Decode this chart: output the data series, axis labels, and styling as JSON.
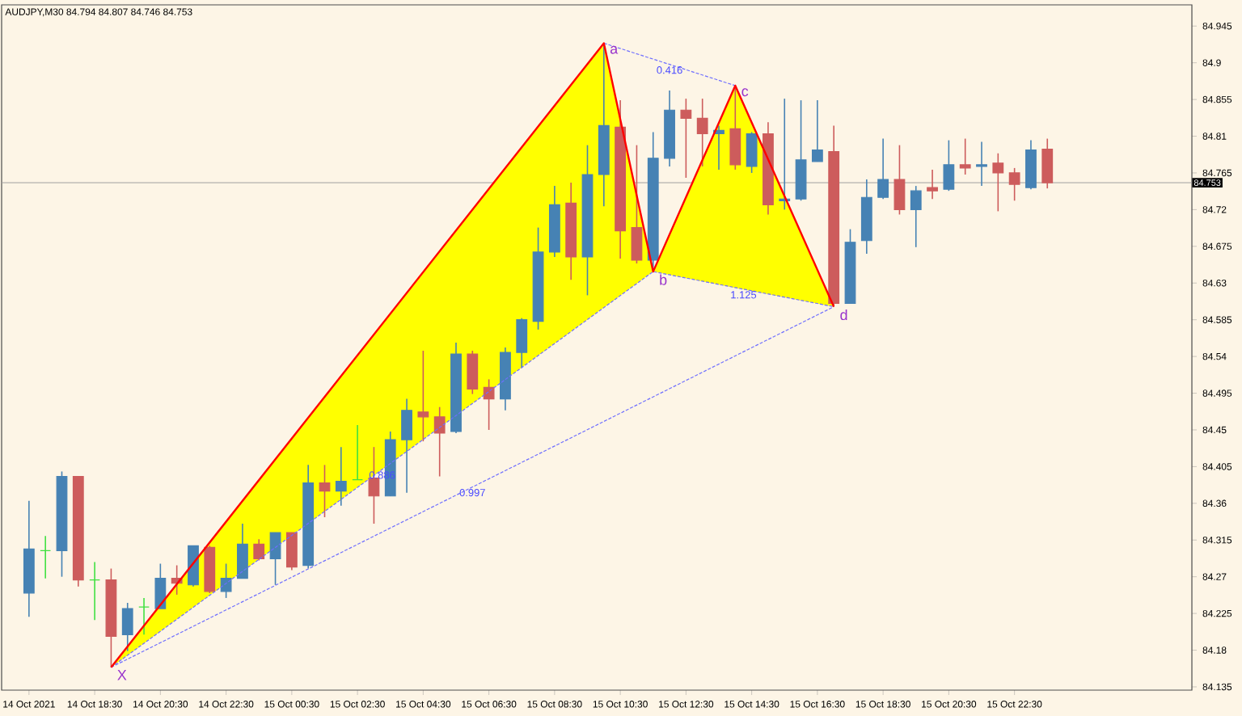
{
  "chart_data": {
    "type": "candlestick",
    "title": "AUDJPY,M30  84.794 84.807 84.746 84.753",
    "x": [
      "2021-10-14T16:30",
      "2021-10-14T17:00",
      "2021-10-14T17:30",
      "2021-10-14T18:00",
      "2021-10-14T18:30",
      "2021-10-14T19:00",
      "2021-10-14T19:30",
      "2021-10-14T20:00",
      "2021-10-14T20:30",
      "2021-10-14T21:00",
      "2021-10-14T21:30",
      "2021-10-14T22:00",
      "2021-10-14T22:30",
      "2021-10-14T23:00",
      "2021-10-14T23:30",
      "2021-10-15T00:00",
      "2021-10-15T00:30",
      "2021-10-15T01:00",
      "2021-10-15T01:30",
      "2021-10-15T02:00",
      "2021-10-15T02:30",
      "2021-10-15T03:00",
      "2021-10-15T03:30",
      "2021-10-15T04:00",
      "2021-10-15T04:30",
      "2021-10-15T05:00",
      "2021-10-15T05:30",
      "2021-10-15T06:00",
      "2021-10-15T06:30",
      "2021-10-15T07:00",
      "2021-10-15T07:30",
      "2021-10-15T08:00",
      "2021-10-15T08:30",
      "2021-10-15T09:00",
      "2021-10-15T09:30",
      "2021-10-15T10:00",
      "2021-10-15T10:30",
      "2021-10-15T11:00",
      "2021-10-15T11:30",
      "2021-10-15T12:00",
      "2021-10-15T12:30",
      "2021-10-15T13:00",
      "2021-10-15T13:30",
      "2021-10-15T14:00",
      "2021-10-15T14:30",
      "2021-10-15T15:00",
      "2021-10-15T15:30",
      "2021-10-15T16:00",
      "2021-10-15T16:30",
      "2021-10-15T17:00",
      "2021-10-15T17:30",
      "2021-10-15T18:00",
      "2021-10-15T18:30",
      "2021-10-15T19:00",
      "2021-10-15T19:30",
      "2021-10-15T20:00",
      "2021-10-15T20:30",
      "2021-10-15T21:00",
      "2021-10-15T21:30",
      "2021-10-15T22:00",
      "2021-10-15T22:30",
      "2021-10-15T23:00",
      "2021-10-15T23:30"
    ],
    "ohlc": [
      [
        84.25,
        84.363,
        84.221,
        84.304
      ],
      [
        84.302,
        84.32,
        84.268,
        84.302
      ],
      [
        84.302,
        84.399,
        84.27,
        84.393
      ],
      [
        84.393,
        84.393,
        84.258,
        84.266
      ],
      [
        84.266,
        84.288,
        84.217,
        84.266
      ],
      [
        84.266,
        84.28,
        84.159,
        84.197
      ],
      [
        84.199,
        84.238,
        84.179,
        84.231
      ],
      [
        84.233,
        84.244,
        84.199,
        84.233
      ],
      [
        84.231,
        84.286,
        84.231,
        84.268
      ],
      [
        84.268,
        84.284,
        84.248,
        84.262
      ],
      [
        84.26,
        84.308,
        84.258,
        84.308
      ],
      [
        84.306,
        84.308,
        84.25,
        84.252
      ],
      [
        84.252,
        84.286,
        84.244,
        84.268
      ],
      [
        84.268,
        84.335,
        84.268,
        84.31
      ],
      [
        84.31,
        84.316,
        84.29,
        84.292
      ],
      [
        84.292,
        84.324,
        84.26,
        84.324
      ],
      [
        84.324,
        84.324,
        84.278,
        84.282
      ],
      [
        84.284,
        84.407,
        84.28,
        84.385
      ],
      [
        84.385,
        84.407,
        84.343,
        84.375
      ],
      [
        84.375,
        84.429,
        84.357,
        84.387
      ],
      [
        84.389,
        84.456,
        84.389,
        84.389
      ],
      [
        84.391,
        84.429,
        84.335,
        84.369
      ],
      [
        84.369,
        84.448,
        84.369,
        84.438
      ],
      [
        84.438,
        84.488,
        84.373,
        84.474
      ],
      [
        84.472,
        84.547,
        84.436,
        84.466
      ],
      [
        84.466,
        84.478,
        84.393,
        84.446
      ],
      [
        84.448,
        84.557,
        84.446,
        84.543
      ],
      [
        84.543,
        84.547,
        84.494,
        84.5
      ],
      [
        84.502,
        84.512,
        84.45,
        84.488
      ],
      [
        84.488,
        84.551,
        84.474,
        84.545
      ],
      [
        84.545,
        84.587,
        84.526,
        84.585
      ],
      [
        84.583,
        84.698,
        84.573,
        84.668
      ],
      [
        84.668,
        84.749,
        84.662,
        84.726
      ],
      [
        84.728,
        84.753,
        84.634,
        84.662
      ],
      [
        84.662,
        84.799,
        84.615,
        84.763
      ],
      [
        84.763,
        84.924,
        84.724,
        84.823
      ],
      [
        84.821,
        84.854,
        84.66,
        84.694
      ],
      [
        84.698,
        84.799,
        84.654,
        84.658
      ],
      [
        84.658,
        84.815,
        84.644,
        84.783
      ],
      [
        84.783,
        84.866,
        84.773,
        84.842
      ],
      [
        84.842,
        84.856,
        84.759,
        84.832
      ],
      [
        84.832,
        84.856,
        84.773,
        84.813
      ],
      [
        84.813,
        84.823,
        84.769,
        84.817
      ],
      [
        84.819,
        84.872,
        84.769,
        84.775
      ],
      [
        84.773,
        84.815,
        84.765,
        84.813
      ],
      [
        84.813,
        84.827,
        84.714,
        84.726
      ],
      [
        84.731,
        84.856,
        84.72,
        84.733
      ],
      [
        84.733,
        84.854,
        84.731,
        84.781
      ],
      [
        84.779,
        84.854,
        84.779,
        84.793
      ],
      [
        84.791,
        84.823,
        84.601,
        84.605
      ],
      [
        84.605,
        84.696,
        84.605,
        84.68
      ],
      [
        84.682,
        84.757,
        84.666,
        84.735
      ],
      [
        84.735,
        84.807,
        84.733,
        84.757
      ],
      [
        84.757,
        84.799,
        84.714,
        84.72
      ],
      [
        84.72,
        84.749,
        84.674,
        84.743
      ],
      [
        84.747,
        84.769,
        84.733,
        84.743
      ],
      [
        84.745,
        84.805,
        84.743,
        84.775
      ],
      [
        84.775,
        84.807,
        84.763,
        84.771
      ],
      [
        84.773,
        84.803,
        84.749,
        84.775
      ],
      [
        84.777,
        84.789,
        84.718,
        84.765
      ],
      [
        84.765,
        84.771,
        84.731,
        84.751
      ],
      [
        84.747,
        84.805,
        84.745,
        84.793
      ],
      [
        84.794,
        84.807,
        84.746,
        84.753
      ]
    ],
    "colors": [
      "#4682b4",
      "#40e040",
      "#4682b4",
      "#cd5c5c",
      "#40e040",
      "#cd5c5c",
      "#4682b4",
      "#40e040",
      "#4682b4",
      "#cd5c5c",
      "#4682b4",
      "#cd5c5c",
      "#4682b4",
      "#4682b4",
      "#cd5c5c",
      "#4682b4",
      "#cd5c5c",
      "#4682b4",
      "#cd5c5c",
      "#4682b4",
      "#40e040",
      "#cd5c5c",
      "#4682b4",
      "#4682b4",
      "#cd5c5c",
      "#cd5c5c",
      "#4682b4",
      "#cd5c5c",
      "#cd5c5c",
      "#4682b4",
      "#4682b4",
      "#4682b4",
      "#4682b4",
      "#cd5c5c",
      "#4682b4",
      "#4682b4",
      "#cd5c5c",
      "#cd5c5c",
      "#4682b4",
      "#4682b4",
      "#cd5c5c",
      "#cd5c5c",
      "#4682b4",
      "#cd5c5c",
      "#4682b4",
      "#cd5c5c",
      "#4682b4",
      "#4682b4",
      "#4682b4",
      "#cd5c5c",
      "#4682b4",
      "#4682b4",
      "#4682b4",
      "#cd5c5c",
      "#4682b4",
      "#cd5c5c",
      "#4682b4",
      "#cd5c5c",
      "#4682b4",
      "#cd5c5c",
      "#cd5c5c",
      "#4682b4",
      "#cd5c5c"
    ],
    "series": [
      {
        "type": "line",
        "color": "#6f6fff",
        "line_style": "dashed",
        "x": [
          "2021-10-14T19:00",
          "2021-10-15T11:30",
          "2021-10-15T17:00"
        ],
        "values": [
          84.159,
          84.644,
          84.601
        ]
      },
      {
        "type": "line",
        "color": "#6f6fff",
        "line_style": "dashed",
        "x": [
          "2021-10-15T10:00",
          "2021-10-15T14:00"
        ],
        "values": [
          84.924,
          84.872
        ]
      },
      {
        "type": "line",
        "color": "#6f6fff",
        "line_style": "dashed",
        "x": [
          "2021-10-14T19:00",
          "2021-10-15T17:00"
        ],
        "values": [
          84.159,
          84.601
        ]
      },
      {
        "type": "line",
        "color": "#ff0000",
        "line_style": "solid",
        "x": [
          "2021-10-14T19:00",
          "2021-10-15T10:00",
          "2021-10-15T11:30",
          "2021-10-15T14:00",
          "2021-10-15T17:00"
        ],
        "values": [
          84.159,
          84.924,
          84.644,
          84.872,
          84.601
        ],
        "lower": [
          84.159,
          84.6,
          84.644,
          84.624,
          84.601
        ],
        "upper": [
          84.159,
          84.924,
          84.644,
          84.872,
          84.601
        ]
      }
    ],
    "annotations": [
      "X",
      "a",
      "b",
      "c",
      "d",
      "0.416",
      "1.125",
      "0.886",
      "0.997"
    ],
    "ref_lines": [
      {
        "axis": "y",
        "value": 84.753,
        "label": "84.753",
        "color": "#a0a0a0"
      }
    ],
    "xlim": [
      "2021-10-14T15:40",
      "2021-10-16T03:54"
    ],
    "ylim": [
      84.131,
      84.971
    ],
    "xticks": [
      {
        "value": "2021-10-14T16:30",
        "label": "14 Oct 2021"
      },
      {
        "value": "2021-10-14T18:30",
        "label": "14 Oct 18:30"
      },
      {
        "value": "2021-10-14T20:30",
        "label": "14 Oct 20:30"
      },
      {
        "value": "2021-10-14T22:30",
        "label": "14 Oct 22:30"
      },
      {
        "value": "2021-10-15T00:30",
        "label": "15 Oct 00:30"
      },
      {
        "value": "2021-10-15T02:30",
        "label": "15 Oct 02:30"
      },
      {
        "value": "2021-10-15T04:30",
        "label": "15 Oct 04:30"
      },
      {
        "value": "2021-10-15T06:30",
        "label": "15 Oct 06:30"
      },
      {
        "value": "2021-10-15T08:30",
        "label": "15 Oct 08:30"
      },
      {
        "value": "2021-10-15T10:30",
        "label": "15 Oct 10:30"
      },
      {
        "value": "2021-10-15T12:30",
        "label": "15 Oct 12:30"
      },
      {
        "value": "2021-10-15T14:30",
        "label": "15 Oct 14:30"
      },
      {
        "value": "2021-10-15T16:30",
        "label": "15 Oct 16:30"
      },
      {
        "value": "2021-10-15T18:30",
        "label": "15 Oct 18:30"
      },
      {
        "value": "2021-10-15T20:30",
        "label": "15 Oct 20:30"
      },
      {
        "value": "2021-10-15T22:30",
        "label": "15 Oct 22:30"
      }
    ],
    "yticks": [
      84.135,
      84.18,
      84.225,
      84.27,
      84.315,
      84.36,
      84.405,
      84.45,
      84.495,
      84.54,
      84.585,
      84.63,
      84.675,
      84.72,
      84.765,
      84.81,
      84.855,
      84.9,
      84.945
    ]
  }
}
